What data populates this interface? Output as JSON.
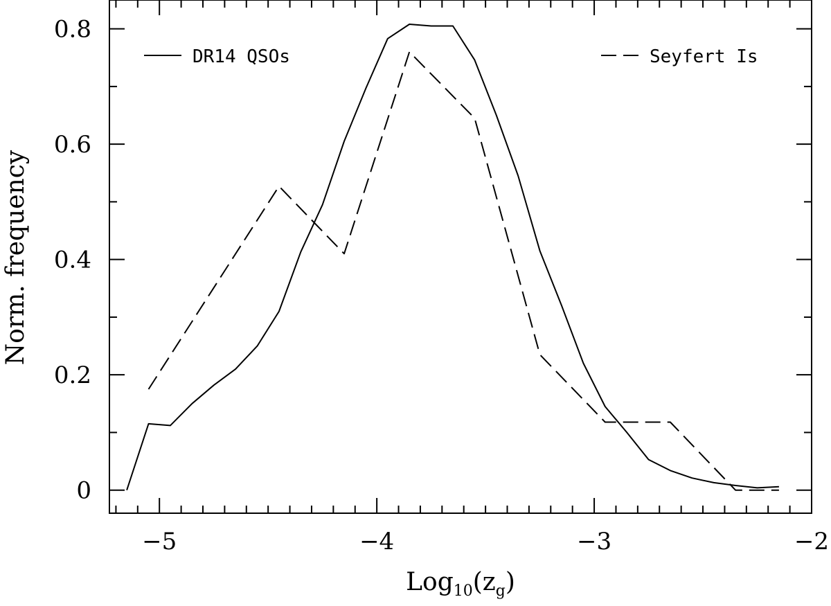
{
  "chart_data": {
    "type": "line",
    "title": "",
    "xlabel": {
      "base": "Log",
      "sub": "10",
      "open": "(z",
      "sub2": "g",
      "close": ")"
    },
    "ylabel": "Norm. frequency",
    "xlim": [
      -5.23,
      -2.0
    ],
    "ylim": [
      -0.04,
      0.85
    ],
    "x_ticks": [
      -5,
      -4,
      -3,
      -2
    ],
    "x_tick_labels": [
      "−5",
      "−4",
      "−3",
      "−2"
    ],
    "y_ticks": [
      0,
      0.2,
      0.4,
      0.6,
      0.8
    ],
    "y_tick_labels": [
      "0",
      "0.2",
      "0.4",
      "0.6",
      "0.8"
    ],
    "x_minor_step": 0.1,
    "y_minor_step": 0.1,
    "grid": false,
    "series": [
      {
        "name": "DR14 QSOs",
        "style": "solid",
        "legend_position": "top-left",
        "x": [
          -5.15,
          -5.05,
          -4.95,
          -4.85,
          -4.75,
          -4.65,
          -4.55,
          -4.45,
          -4.35,
          -4.25,
          -4.15,
          -4.05,
          -3.95,
          -3.85,
          -3.75,
          -3.65,
          -3.55,
          -3.45,
          -3.35,
          -3.25,
          -3.15,
          -3.05,
          -2.95,
          -2.85,
          -2.75,
          -2.65,
          -2.55,
          -2.45,
          -2.35,
          -2.25,
          -2.15
        ],
        "y": [
          0.0,
          0.115,
          0.112,
          0.15,
          0.182,
          0.21,
          0.25,
          0.31,
          0.413,
          0.495,
          0.605,
          0.697,
          0.783,
          0.808,
          0.805,
          0.805,
          0.746,
          0.65,
          0.545,
          0.415,
          0.32,
          0.22,
          0.145,
          0.1,
          0.053,
          0.034,
          0.021,
          0.013,
          0.008,
          0.004,
          0.006
        ]
      },
      {
        "name": "Seyfert Is",
        "style": "dashed",
        "legend_position": "top-right",
        "x": [
          -5.05,
          -4.45,
          -4.15,
          -3.85,
          -3.55,
          -3.25,
          -2.95,
          -2.65,
          -2.35,
          -2.15
        ],
        "y": [
          0.175,
          0.527,
          0.41,
          0.76,
          0.645,
          0.235,
          0.118,
          0.118,
          0.0,
          0.0
        ]
      }
    ]
  }
}
